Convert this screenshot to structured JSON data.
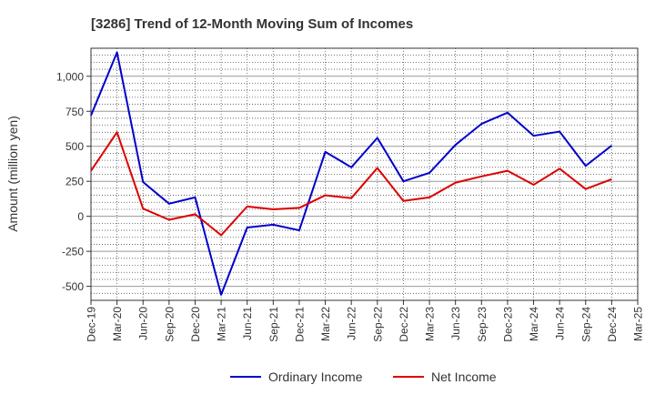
{
  "chart_data": {
    "type": "line",
    "title": "[3286]  Trend of 12-Month Moving Sum of Incomes",
    "xlabel": "",
    "ylabel": "Amount (million yen)",
    "ylim": [
      -600,
      1200
    ],
    "yticks": [
      -500,
      -250,
      0,
      250,
      500,
      750,
      1000
    ],
    "ytick_labels": [
      "-500",
      "-250",
      "0",
      "250",
      "500",
      "750",
      "1,000"
    ],
    "categories": [
      "Dec-19",
      "Mar-20",
      "Jun-20",
      "Sep-20",
      "Dec-20",
      "Mar-21",
      "Jun-21",
      "Sep-21",
      "Dec-21",
      "Mar-22",
      "Jun-22",
      "Sep-22",
      "Dec-22",
      "Mar-23",
      "Jun-23",
      "Sep-23",
      "Dec-23",
      "Mar-24",
      "Jun-24",
      "Sep-24",
      "Dec-24",
      "Mar-25"
    ],
    "series": [
      {
        "name": "Ordinary Income",
        "color": "#0000cc",
        "values": [
          720,
          1170,
          245,
          90,
          135,
          -560,
          -80,
          -60,
          -100,
          460,
          350,
          560,
          250,
          310,
          510,
          660,
          740,
          575,
          605,
          360,
          505,
          null
        ]
      },
      {
        "name": "Net Income",
        "color": "#dd0000",
        "values": [
          325,
          600,
          55,
          -25,
          15,
          -135,
          70,
          50,
          60,
          150,
          130,
          345,
          110,
          135,
          240,
          285,
          325,
          225,
          340,
          195,
          265,
          null
        ]
      }
    ],
    "grid": true,
    "legend_position": "bottom-center"
  }
}
